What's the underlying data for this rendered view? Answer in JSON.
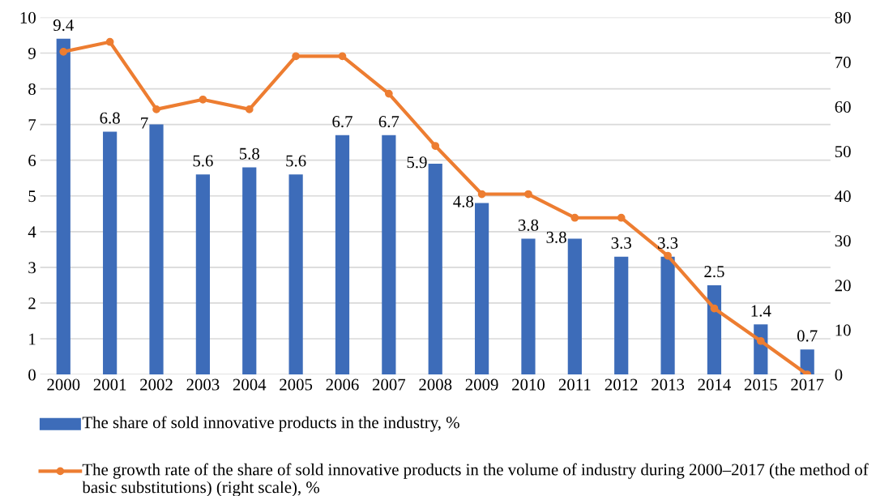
{
  "chart_data": {
    "type": "bar",
    "categories": [
      "2000",
      "2001",
      "2002",
      "2003",
      "2004",
      "2005",
      "2006",
      "2007",
      "2008",
      "2009",
      "2010",
      "2011",
      "2012",
      "2013",
      "2014",
      "2015",
      "2017"
    ],
    "series": [
      {
        "name": "The share of sold innovative products in the industry, %",
        "color": "#3d6cb9",
        "values": [
          9.4,
          6.8,
          7,
          5.6,
          5.8,
          5.6,
          6.7,
          6.7,
          5.9,
          4.8,
          3.8,
          3.8,
          3.3,
          3.3,
          2.5,
          1.4,
          0.7
        ],
        "value_labels": [
          "9.4",
          "6.8",
          "7",
          "5.6",
          "5.8",
          "5.6",
          "6.7",
          "6.7",
          "5.9",
          "4.8",
          "3.8",
          "3.8",
          "3.3",
          "3.3",
          "2.5",
          "1.4",
          "0.7"
        ]
      },
      {
        "name": "The growth rate of the share of sold innovative products in the volume of industry during 2000–2017 (the method of basic substitutions) (right scale), %",
        "type": "line",
        "axis": "y2",
        "color": "#ed7d31",
        "marker": "circle",
        "values": [
          72.3,
          74.5,
          59.4,
          61.6,
          59.4,
          71.3,
          71.3,
          62.9,
          51.2,
          40.4,
          40.4,
          35.1,
          35.1,
          26.6,
          14.8,
          7.5,
          0
        ]
      }
    ],
    "ylim": [
      0,
      10
    ],
    "yticks": [
      0,
      1,
      2,
      3,
      4,
      5,
      6,
      7,
      8,
      9,
      10
    ],
    "y2lim": [
      0,
      80
    ],
    "y2ticks": [
      0,
      10,
      20,
      30,
      40,
      50,
      60,
      70,
      80
    ],
    "grid": "y",
    "legend": "bottom"
  }
}
